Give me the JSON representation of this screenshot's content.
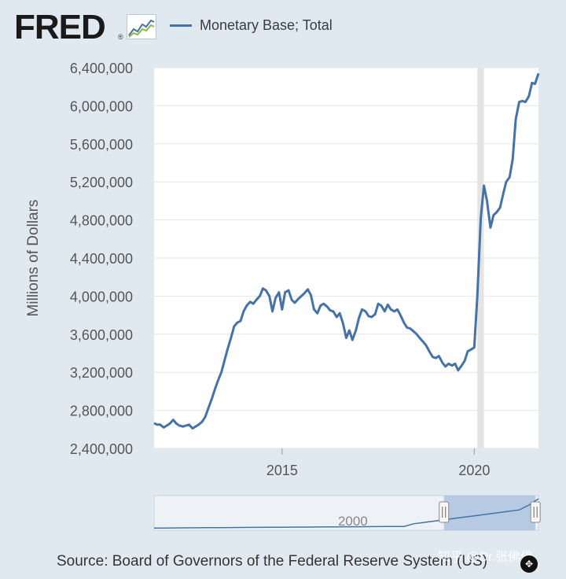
{
  "header": {
    "logo_text": "FRED",
    "logo_reg": "®",
    "legend_label": "Monetary Base; Total"
  },
  "source": "Source: Board of Governors of the Federal Reserve System (US)",
  "watermark": "知乎 @Dr.张佛佛",
  "colors": {
    "background": "#e1e9f0",
    "plot_background": "#ffffff",
    "series_line": "#4572a7",
    "recession_band": "#e4e4e4",
    "navigator_selection": "#a9bfdf"
  },
  "icons": {
    "logo_graph": "line-graph-icon",
    "navigator_handle": "drag-handle-icon",
    "pan": "pan-icon"
  },
  "chart_data": {
    "type": "line",
    "title": "",
    "xlabel": "",
    "ylabel": "Millions of Dollars",
    "ylim": [
      2400000,
      6400000
    ],
    "xlim": [
      2011.67,
      2021.67
    ],
    "y_ticks": [
      2400000,
      2800000,
      3200000,
      3600000,
      4000000,
      4400000,
      4800000,
      5200000,
      5600000,
      6000000,
      6400000
    ],
    "y_tick_labels": [
      "2,400,000",
      "2,800,000",
      "3,200,000",
      "3,600,000",
      "4,000,000",
      "4,400,000",
      "4,800,000",
      "5,200,000",
      "5,600,000",
      "6,000,000",
      "6,400,000"
    ],
    "x_ticks": [
      2015,
      2020
    ],
    "x_tick_labels": [
      "2015",
      "2020"
    ],
    "grid": "horizontal",
    "legend": "top",
    "recession": [
      2020.08,
      2020.25
    ],
    "series": [
      {
        "name": "Monetary Base; Total",
        "x": [
          2011.67,
          2011.75,
          2011.83,
          2011.92,
          2012.0,
          2012.08,
          2012.17,
          2012.25,
          2012.33,
          2012.42,
          2012.5,
          2012.58,
          2012.67,
          2012.75,
          2012.83,
          2012.92,
          2013.0,
          2013.08,
          2013.17,
          2013.25,
          2013.33,
          2013.42,
          2013.5,
          2013.58,
          2013.67,
          2013.75,
          2013.83,
          2013.92,
          2014.0,
          2014.08,
          2014.17,
          2014.25,
          2014.33,
          2014.42,
          2014.5,
          2014.58,
          2014.67,
          2014.75,
          2014.83,
          2014.92,
          2015.0,
          2015.08,
          2015.17,
          2015.25,
          2015.33,
          2015.42,
          2015.5,
          2015.58,
          2015.67,
          2015.75,
          2015.83,
          2015.92,
          2016.0,
          2016.08,
          2016.17,
          2016.25,
          2016.33,
          2016.42,
          2016.5,
          2016.58,
          2016.67,
          2016.75,
          2016.83,
          2016.92,
          2017.0,
          2017.08,
          2017.17,
          2017.25,
          2017.33,
          2017.42,
          2017.5,
          2017.58,
          2017.67,
          2017.75,
          2017.83,
          2017.92,
          2018.0,
          2018.08,
          2018.17,
          2018.25,
          2018.33,
          2018.42,
          2018.5,
          2018.58,
          2018.67,
          2018.75,
          2018.83,
          2018.92,
          2019.0,
          2019.08,
          2019.17,
          2019.25,
          2019.33,
          2019.42,
          2019.5,
          2019.58,
          2019.67,
          2019.75,
          2019.83,
          2019.92,
          2020.0,
          2020.08,
          2020.17,
          2020.25,
          2020.33,
          2020.42,
          2020.5,
          2020.58,
          2020.67,
          2020.75,
          2020.83,
          2020.92,
          2021.0,
          2021.08,
          2021.17,
          2021.25,
          2021.33,
          2021.42,
          2021.5,
          2021.58,
          2021.67
        ],
        "values": [
          2665000,
          2650000,
          2650000,
          2620000,
          2640000,
          2660000,
          2700000,
          2660000,
          2640000,
          2630000,
          2640000,
          2650000,
          2610000,
          2630000,
          2650000,
          2680000,
          2730000,
          2820000,
          2920000,
          3020000,
          3110000,
          3200000,
          3320000,
          3440000,
          3560000,
          3680000,
          3720000,
          3740000,
          3840000,
          3900000,
          3940000,
          3920000,
          3960000,
          4000000,
          4080000,
          4060000,
          4000000,
          3840000,
          3980000,
          4040000,
          3860000,
          4040000,
          4060000,
          3960000,
          3930000,
          3970000,
          4000000,
          4030000,
          4070000,
          4010000,
          3860000,
          3820000,
          3900000,
          3920000,
          3890000,
          3850000,
          3840000,
          3780000,
          3820000,
          3720000,
          3560000,
          3640000,
          3540000,
          3640000,
          3770000,
          3860000,
          3840000,
          3790000,
          3780000,
          3810000,
          3920000,
          3900000,
          3840000,
          3910000,
          3860000,
          3840000,
          3860000,
          3800000,
          3720000,
          3670000,
          3660000,
          3630000,
          3600000,
          3560000,
          3520000,
          3480000,
          3420000,
          3360000,
          3350000,
          3370000,
          3300000,
          3260000,
          3290000,
          3270000,
          3290000,
          3220000,
          3270000,
          3320000,
          3420000,
          3440000,
          3460000,
          4000000,
          4820000,
          5160000,
          5000000,
          4720000,
          4850000,
          4880000,
          4930000,
          5070000,
          5200000,
          5250000,
          5440000,
          5860000,
          6040000,
          6050000,
          6040000,
          6100000,
          6240000,
          6230000,
          6340000
        ]
      }
    ],
    "navigator": {
      "x_tick_labels": [
        "2000"
      ],
      "xlim": [
        1980,
        2022
      ],
      "selection": [
        2011.67,
        2021.67
      ]
    }
  }
}
